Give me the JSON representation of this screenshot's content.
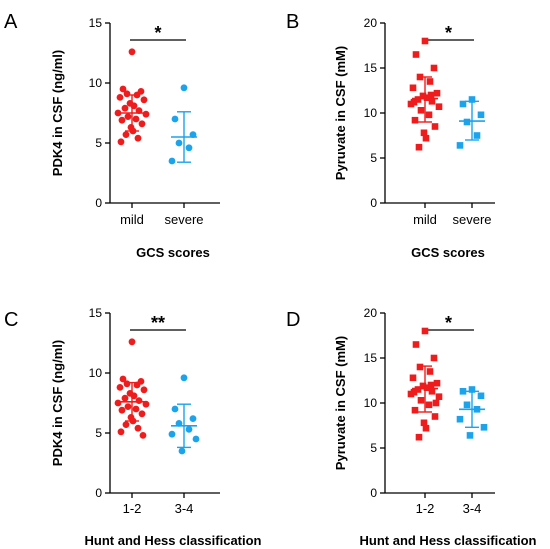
{
  "colors": {
    "red": "#ee1c1c",
    "blue": "#1ba3ec",
    "axis": "#000000"
  },
  "chart_data": [
    {
      "panel": "A",
      "type": "scatter",
      "marker": "circle",
      "ylabel": "PDK4 in CSF (ng/ml)",
      "xlabel": "GCS scores",
      "ylim": [
        0,
        15
      ],
      "yticks": [
        0,
        5,
        10,
        15
      ],
      "significance": "*",
      "categories": [
        "mild",
        "severe"
      ],
      "groups": [
        {
          "category": "mild",
          "color": "red",
          "mean": 7.5,
          "sd_low": 6.0,
          "sd_high": 9.0,
          "values": [
            12.6,
            9.5,
            9.3,
            9.1,
            9.0,
            8.8,
            8.6,
            8.3,
            8.1,
            7.9,
            7.7,
            7.5,
            7.4,
            7.2,
            7.0,
            6.9,
            6.6,
            6.3,
            6.0,
            5.7,
            5.4,
            5.1
          ]
        },
        {
          "category": "severe",
          "color": "blue",
          "mean": 5.5,
          "sd_low": 3.4,
          "sd_high": 7.6,
          "values": [
            9.6,
            7.0,
            5.7,
            5.0,
            4.6,
            3.5
          ]
        }
      ]
    },
    {
      "panel": "B",
      "type": "scatter",
      "marker": "square",
      "ylabel": "Pyruvate in CSF (mM)",
      "xlabel": "GCS scores",
      "ylim": [
        0,
        20
      ],
      "yticks": [
        0,
        5,
        10,
        15,
        20
      ],
      "significance": "*",
      "categories": [
        "mild",
        "severe"
      ],
      "groups": [
        {
          "category": "mild",
          "color": "red",
          "mean": 11.6,
          "sd_low": 9.0,
          "sd_high": 14.0,
          "values": [
            18.0,
            16.5,
            15.0,
            14.0,
            13.5,
            12.8,
            12.2,
            11.9,
            11.7,
            11.5,
            11.3,
            11.0,
            10.7,
            10.3,
            9.8,
            9.2,
            8.5,
            7.8,
            7.2,
            6.2,
            12.0,
            11.2
          ]
        },
        {
          "category": "severe",
          "color": "blue",
          "mean": 9.1,
          "sd_low": 7.0,
          "sd_high": 11.3,
          "values": [
            11.5,
            11.0,
            9.8,
            9.0,
            7.5,
            6.4
          ]
        }
      ]
    },
    {
      "panel": "C",
      "type": "scatter",
      "marker": "circle",
      "ylabel": "PDK4 in CSF (ng/ml)",
      "xlabel": "Hunt and Hess classification",
      "ylim": [
        0,
        15
      ],
      "yticks": [
        0,
        5,
        10,
        15
      ],
      "significance": "**",
      "categories": [
        "1-2",
        "3-4"
      ],
      "groups": [
        {
          "category": "1-2",
          "color": "red",
          "mean": 7.6,
          "sd_low": 6.0,
          "sd_high": 9.2,
          "values": [
            12.6,
            9.5,
            9.3,
            9.1,
            9.0,
            8.8,
            8.6,
            8.3,
            8.1,
            7.9,
            7.7,
            7.5,
            7.4,
            7.2,
            7.0,
            6.9,
            6.6,
            6.3,
            6.0,
            5.7,
            5.4,
            5.1,
            4.8
          ]
        },
        {
          "category": "3-4",
          "color": "blue",
          "mean": 5.6,
          "sd_low": 3.8,
          "sd_high": 7.4,
          "values": [
            9.6,
            7.0,
            6.2,
            5.8,
            5.3,
            4.9,
            4.5,
            3.5
          ]
        }
      ]
    },
    {
      "panel": "D",
      "type": "scatter",
      "marker": "square",
      "ylabel": "Pyruvate in CSF (mM)",
      "xlabel": "Hunt and Hess classification",
      "ylim": [
        0,
        20
      ],
      "yticks": [
        0,
        5,
        10,
        15,
        20
      ],
      "significance": "*",
      "categories": [
        "1-2",
        "3-4"
      ],
      "groups": [
        {
          "category": "1-2",
          "color": "red",
          "mean": 11.6,
          "sd_low": 9.0,
          "sd_high": 14.1,
          "values": [
            18.0,
            16.5,
            15.0,
            14.0,
            13.5,
            12.8,
            12.2,
            11.9,
            11.7,
            11.5,
            11.3,
            11.0,
            10.7,
            10.3,
            9.8,
            9.2,
            8.5,
            7.8,
            7.2,
            6.2,
            12.0,
            11.2,
            10.0
          ]
        },
        {
          "category": "3-4",
          "color": "blue",
          "mean": 9.3,
          "sd_low": 7.3,
          "sd_high": 11.3,
          "values": [
            11.5,
            11.3,
            10.8,
            9.8,
            9.3,
            8.2,
            7.3,
            6.4
          ]
        }
      ]
    }
  ]
}
